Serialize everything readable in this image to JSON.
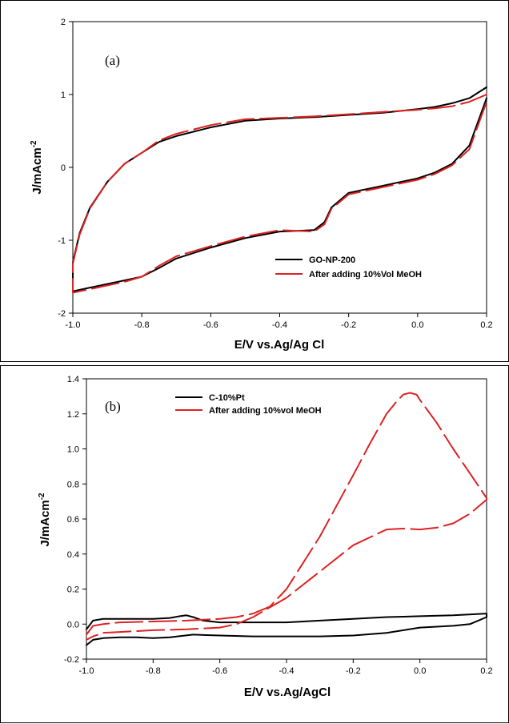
{
  "chart_data": [
    {
      "type": "line",
      "panel_label": "(a)",
      "xlabel": "E/V vs.Ag/Ag Cl",
      "ylabel": "J/mAcm",
      "ylabel_sup": "-2",
      "xlim": [
        -1.0,
        0.2
      ],
      "ylim": [
        -2,
        2
      ],
      "xticks": [
        -1.0,
        -0.8,
        -0.6,
        -0.4,
        -0.2,
        0.0,
        0.2
      ],
      "xtick_labels": [
        "-1.0",
        "-0.8",
        "-0.6",
        "-0.4",
        "-0.2",
        "0.0",
        "0.2"
      ],
      "yticks": [
        -2,
        -1,
        0,
        1,
        2
      ],
      "ytick_labels": [
        "-2",
        "-1",
        "0",
        "1",
        "2"
      ],
      "grid": false,
      "legend_position": "bottom-right",
      "series": [
        {
          "name": "GO-NP-200",
          "color": "#000000",
          "style": "solid",
          "x": [
            0.2,
            0.15,
            0.1,
            0.05,
            0.0,
            -0.1,
            -0.2,
            -0.3,
            -0.35,
            -0.4,
            -0.5,
            -0.6,
            -0.7,
            -0.75,
            -0.8,
            -0.85,
            -0.9,
            -0.95,
            -0.98,
            -1.0,
            -1.0,
            -0.98,
            -0.95,
            -0.9,
            -0.85,
            -0.8,
            -0.75,
            -0.7,
            -0.6,
            -0.5,
            -0.4,
            -0.3,
            -0.27,
            -0.25,
            -0.2,
            -0.1,
            0.0,
            0.05,
            0.1,
            0.15,
            0.2
          ],
          "y": [
            1.1,
            0.95,
            0.88,
            0.83,
            0.8,
            0.75,
            0.72,
            0.69,
            0.68,
            0.67,
            0.64,
            0.55,
            0.43,
            0.35,
            0.2,
            0.05,
            -0.2,
            -0.55,
            -0.9,
            -1.3,
            -1.7,
            -1.68,
            -1.65,
            -1.6,
            -1.55,
            -1.5,
            -1.38,
            -1.25,
            -1.1,
            -0.97,
            -0.88,
            -0.86,
            -0.75,
            -0.55,
            -0.35,
            -0.25,
            -0.15,
            -0.07,
            0.05,
            0.3,
            0.95
          ]
        },
        {
          "name": "After adding 10%Vol MeOH",
          "color": "#dd2222",
          "style": "dashed",
          "x": [
            0.2,
            0.15,
            0.1,
            0.05,
            0.0,
            -0.1,
            -0.2,
            -0.3,
            -0.35,
            -0.4,
            -0.5,
            -0.6,
            -0.7,
            -0.75,
            -0.8,
            -0.85,
            -0.9,
            -0.95,
            -0.98,
            -1.0,
            -1.0,
            -0.98,
            -0.95,
            -0.9,
            -0.85,
            -0.8,
            -0.75,
            -0.7,
            -0.6,
            -0.5,
            -0.4,
            -0.3,
            -0.27,
            -0.25,
            -0.2,
            -0.1,
            0.0,
            0.05,
            0.1,
            0.15,
            0.2
          ],
          "y": [
            1.0,
            0.9,
            0.84,
            0.81,
            0.79,
            0.76,
            0.73,
            0.7,
            0.69,
            0.68,
            0.66,
            0.58,
            0.46,
            0.37,
            0.2,
            0.05,
            -0.2,
            -0.56,
            -0.92,
            -1.32,
            -1.72,
            -1.7,
            -1.67,
            -1.62,
            -1.57,
            -1.5,
            -1.35,
            -1.22,
            -1.08,
            -0.95,
            -0.86,
            -0.88,
            -0.78,
            -0.57,
            -0.37,
            -0.27,
            -0.17,
            -0.09,
            0.03,
            0.25,
            0.9
          ]
        }
      ]
    },
    {
      "type": "line",
      "panel_label": "(b)",
      "xlabel": "E/V vs.Ag/AgCl",
      "ylabel": "J/mAcm",
      "ylabel_sup": "-2",
      "xlim": [
        -1.0,
        0.2
      ],
      "ylim": [
        -0.2,
        1.4
      ],
      "xticks": [
        -1.0,
        -0.8,
        -0.6,
        -0.4,
        -0.2,
        0.0,
        0.2
      ],
      "xtick_labels": [
        "-1.0",
        "-0.8",
        "-0.6",
        "-0.4",
        "-0.2",
        "0.0",
        "0.2"
      ],
      "yticks": [
        -0.2,
        0.0,
        0.2,
        0.4,
        0.6,
        0.8,
        1.0,
        1.2,
        1.4
      ],
      "ytick_labels": [
        "-0.2",
        "0.0",
        "0.2",
        "0.4",
        "0.6",
        "0.8",
        "1.0",
        "1.2",
        "1.4"
      ],
      "grid": false,
      "legend_position": "top-left",
      "series": [
        {
          "name": "C-10%Pt",
          "color": "#000000",
          "style": "solid",
          "x": [
            -1.0,
            -0.98,
            -0.95,
            -0.9,
            -0.8,
            -0.75,
            -0.72,
            -0.7,
            -0.68,
            -0.65,
            -0.6,
            -0.5,
            -0.4,
            -0.3,
            -0.2,
            -0.1,
            0.0,
            0.1,
            0.2,
            0.2,
            0.15,
            0.1,
            0.05,
            0.0,
            -0.1,
            -0.2,
            -0.3,
            -0.4,
            -0.5,
            -0.6,
            -0.68,
            -0.75,
            -0.8,
            -0.85,
            -0.9,
            -0.95,
            -0.98,
            -1.0
          ],
          "y": [
            -0.03,
            0.02,
            0.03,
            0.03,
            0.03,
            0.035,
            0.045,
            0.05,
            0.04,
            0.02,
            0.01,
            0.01,
            0.01,
            0.02,
            0.03,
            0.04,
            0.045,
            0.05,
            0.06,
            0.04,
            0.0,
            -0.01,
            -0.015,
            -0.02,
            -0.05,
            -0.065,
            -0.07,
            -0.07,
            -0.07,
            -0.065,
            -0.06,
            -0.075,
            -0.08,
            -0.075,
            -0.075,
            -0.08,
            -0.09,
            -0.12
          ]
        },
        {
          "name": "After adding 10%vol MeOH",
          "color": "#dd2222",
          "style": "dashed",
          "x": [
            -1.0,
            -0.98,
            -0.95,
            -0.9,
            -0.8,
            -0.7,
            -0.6,
            -0.55,
            -0.5,
            -0.45,
            -0.4,
            -0.3,
            -0.2,
            -0.15,
            -0.1,
            -0.07,
            -0.05,
            -0.03,
            -0.01,
            0.0,
            0.05,
            0.1,
            0.15,
            0.2,
            0.2,
            0.15,
            0.1,
            0.05,
            0.0,
            -0.05,
            -0.1,
            -0.2,
            -0.3,
            -0.4,
            -0.5,
            -0.55,
            -0.6,
            -0.7,
            -0.8,
            -0.9,
            -0.95,
            -0.98,
            -1.0
          ],
          "y": [
            -0.06,
            -0.01,
            0.0,
            0.01,
            0.015,
            0.02,
            0.03,
            0.04,
            0.06,
            0.1,
            0.2,
            0.5,
            0.85,
            1.03,
            1.2,
            1.27,
            1.31,
            1.32,
            1.31,
            1.28,
            1.15,
            1.0,
            0.86,
            0.72,
            0.71,
            0.63,
            0.575,
            0.55,
            0.54,
            0.545,
            0.54,
            0.45,
            0.3,
            0.15,
            0.04,
            0.0,
            -0.02,
            -0.03,
            -0.035,
            -0.045,
            -0.05,
            -0.07,
            -0.09
          ]
        }
      ]
    }
  ]
}
